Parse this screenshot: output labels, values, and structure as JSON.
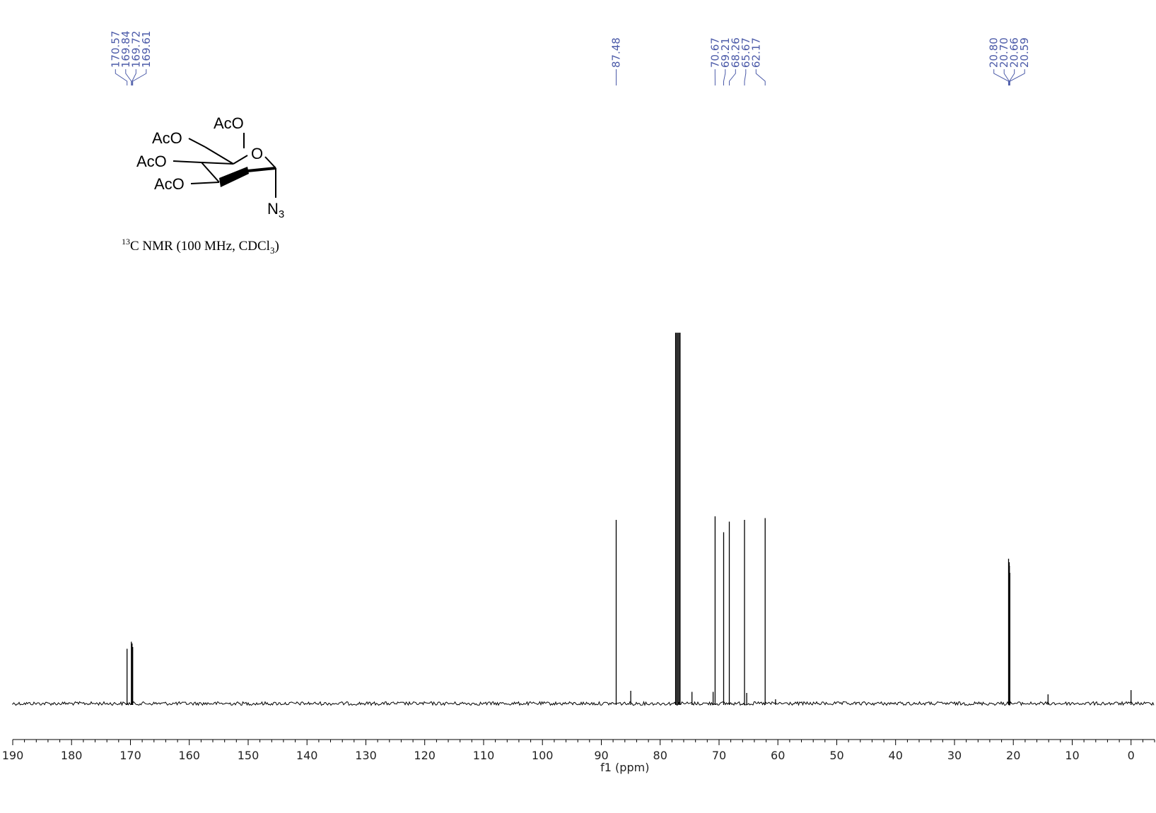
{
  "chart_data": {
    "type": "line",
    "title": "",
    "xlabel": "f1 (ppm)",
    "ylabel": "",
    "xlim": [
      190,
      -4
    ],
    "x_reversed": true,
    "x_ticks": [
      190,
      180,
      170,
      160,
      150,
      140,
      130,
      120,
      110,
      100,
      90,
      80,
      70,
      60,
      50,
      40,
      30,
      20,
      10,
      0
    ],
    "x_tick_labels": [
      "190",
      "180",
      "170",
      "160",
      "150",
      "140",
      "130",
      "120",
      "110",
      "100",
      "90",
      "80",
      "70",
      "60",
      "50",
      "40",
      "30",
      "20",
      "10",
      "0"
    ],
    "minor_tick_step": 2,
    "grid": false,
    "peak_label_groups": [
      {
        "labels": [
          "170.57",
          "169.84",
          "169.72",
          "169.61"
        ]
      },
      {
        "labels": [
          "87.48"
        ]
      },
      {
        "labels": [
          "70.67",
          "69.21",
          "68.26",
          "65.67",
          "62.17"
        ]
      },
      {
        "labels": [
          "20.80",
          "20.70",
          "20.66",
          "20.59"
        ]
      }
    ],
    "peaks": [
      {
        "ppm": 170.57,
        "intensity": 0.155
      },
      {
        "ppm": 169.84,
        "intensity": 0.175
      },
      {
        "ppm": 169.72,
        "intensity": 0.17
      },
      {
        "ppm": 169.61,
        "intensity": 0.16
      },
      {
        "ppm": 87.48,
        "intensity": 0.52
      },
      {
        "ppm": 85.0,
        "intensity": 0.036
      },
      {
        "ppm": 77.32,
        "intensity": 1.05
      },
      {
        "ppm": 77.0,
        "intensity": 1.05
      },
      {
        "ppm": 76.68,
        "intensity": 1.05
      },
      {
        "ppm": 74.6,
        "intensity": 0.033
      },
      {
        "ppm": 71.0,
        "intensity": 0.033
      },
      {
        "ppm": 70.67,
        "intensity": 0.53
      },
      {
        "ppm": 69.21,
        "intensity": 0.485
      },
      {
        "ppm": 68.26,
        "intensity": 0.515
      },
      {
        "ppm": 65.67,
        "intensity": 0.52
      },
      {
        "ppm": 65.3,
        "intensity": 0.03
      },
      {
        "ppm": 62.17,
        "intensity": 0.525
      },
      {
        "ppm": 60.4,
        "intensity": 0.012
      },
      {
        "ppm": 20.8,
        "intensity": 0.41
      },
      {
        "ppm": 20.7,
        "intensity": 0.4
      },
      {
        "ppm": 20.66,
        "intensity": 0.39
      },
      {
        "ppm": 20.59,
        "intensity": 0.37
      },
      {
        "ppm": 14.1,
        "intensity": 0.026
      },
      {
        "ppm": 0.0,
        "intensity": 0.038
      }
    ]
  },
  "structure": {
    "groups": [
      "AcO",
      "AcO",
      "AcO",
      "AcO"
    ],
    "ring_oxygen": "O",
    "substituent": "N",
    "substituent_sub": "3"
  },
  "caption": {
    "superscript": "13",
    "text_a": "C NMR (100 MHz, CDCl",
    "subscript": "3",
    "text_b": ")"
  }
}
